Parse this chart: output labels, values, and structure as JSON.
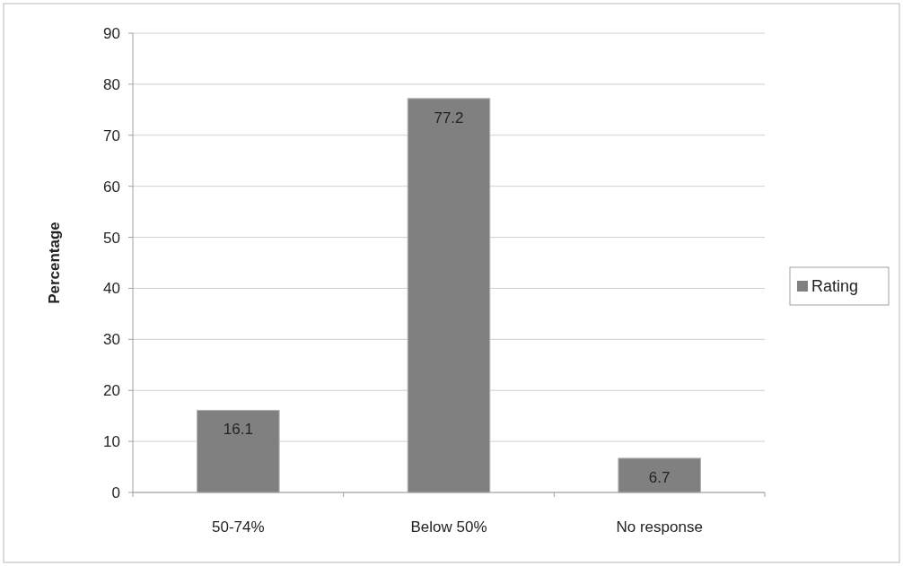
{
  "chart_data": {
    "type": "bar",
    "ylabel": "Percentage",
    "categories": [
      "50-74%",
      "Below 50%",
      "No response"
    ],
    "series": [
      {
        "name": "Rating",
        "color": "#808080",
        "values": [
          16.1,
          77.2,
          6.7
        ]
      }
    ],
    "ylim": [
      0,
      90
    ],
    "yticks": [
      0,
      10,
      20,
      30,
      40,
      50,
      60,
      70,
      80,
      90
    ],
    "grid": "y",
    "legend": "right",
    "data_labels": true
  }
}
